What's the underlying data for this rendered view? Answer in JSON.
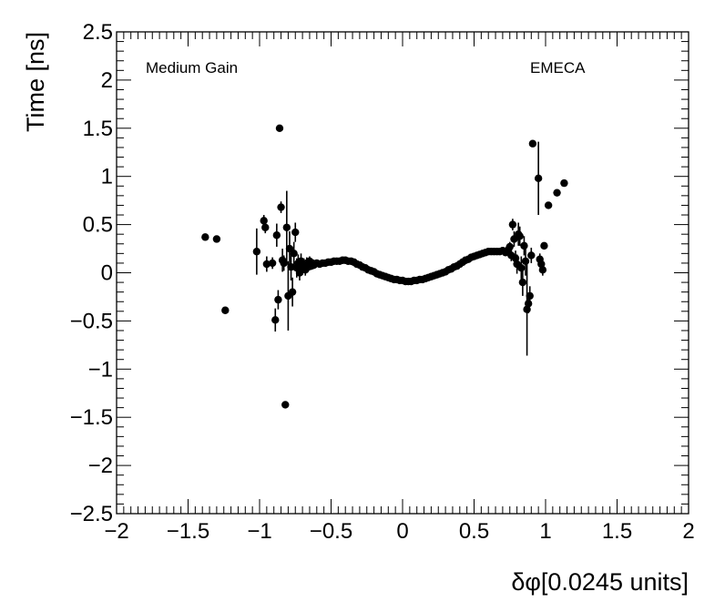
{
  "chart_data": {
    "type": "scatter",
    "title": "",
    "xlabel": "δφ[0.0245 units]",
    "ylabel": "Time [ns]",
    "xlim": [
      -2,
      2
    ],
    "ylim": [
      -2.5,
      2.5
    ],
    "x_ticks": [
      "−2",
      "−1.5",
      "−1",
      "−0.5",
      "0",
      "0.5",
      "1",
      "1.5",
      "2"
    ],
    "y_ticks": [
      "2.5",
      "2",
      "1.5",
      "1",
      "0.5",
      "0",
      "−0.5",
      "−1",
      "−1.5",
      "−2",
      "−2.5"
    ],
    "annotations": {
      "gain": "Medium Gain",
      "region": "EMECA"
    },
    "grid": false,
    "legend": "none",
    "marker_color": "#000000",
    "points": [
      {
        "x": -1.38,
        "y": 0.37,
        "err": 0.0
      },
      {
        "x": -1.3,
        "y": 0.35,
        "err": 0.0
      },
      {
        "x": -1.24,
        "y": -0.39,
        "err": 0.0
      },
      {
        "x": -1.02,
        "y": 0.22,
        "err": 0.24
      },
      {
        "x": -0.97,
        "y": 0.54,
        "err": 0.06
      },
      {
        "x": -0.96,
        "y": 0.47,
        "err": 0.06
      },
      {
        "x": -0.95,
        "y": 0.09,
        "err": 0.08
      },
      {
        "x": -0.91,
        "y": 0.1,
        "err": 0.06
      },
      {
        "x": -0.89,
        "y": -0.49,
        "err": 0.12
      },
      {
        "x": -0.88,
        "y": 0.39,
        "err": 0.12
      },
      {
        "x": -0.87,
        "y": -0.28,
        "err": 0.1
      },
      {
        "x": -0.86,
        "y": 1.5,
        "err": 0.0
      },
      {
        "x": -0.85,
        "y": 0.68,
        "err": 0.06
      },
      {
        "x": -0.84,
        "y": 0.13,
        "err": 0.12
      },
      {
        "x": -0.83,
        "y": 0.1,
        "err": 0.08
      },
      {
        "x": -0.82,
        "y": -1.37,
        "err": 0.0
      },
      {
        "x": -0.81,
        "y": 0.47,
        "err": 0.38
      },
      {
        "x": -0.8,
        "y": -0.24,
        "err": 0.36
      },
      {
        "x": -0.79,
        "y": 0.25,
        "err": 0.18
      },
      {
        "x": -0.78,
        "y": 0.06,
        "err": 0.14
      },
      {
        "x": -0.77,
        "y": -0.2,
        "err": 0.15
      },
      {
        "x": -0.76,
        "y": 0.2,
        "err": 0.12
      },
      {
        "x": -0.75,
        "y": 0.42,
        "err": 0.1
      },
      {
        "x": -0.74,
        "y": 0.05,
        "err": 0.1
      },
      {
        "x": -0.73,
        "y": 0.1,
        "err": 0.09
      },
      {
        "x": -0.72,
        "y": 0.0,
        "err": 0.08
      },
      {
        "x": -0.71,
        "y": 0.12,
        "err": 0.08
      },
      {
        "x": -0.7,
        "y": 0.05,
        "err": 0.07
      },
      {
        "x": -0.69,
        "y": 0.08,
        "err": 0.07
      },
      {
        "x": -0.68,
        "y": 0.03,
        "err": 0.06
      },
      {
        "x": -0.67,
        "y": 0.1,
        "err": 0.06
      },
      {
        "x": -0.66,
        "y": 0.06,
        "err": 0.05
      },
      {
        "x": -0.65,
        "y": 0.12,
        "err": 0.05
      },
      {
        "x": -0.64,
        "y": 0.07,
        "err": 0.04
      },
      {
        "x": -0.63,
        "y": 0.1,
        "err": 0.04
      },
      {
        "x": -0.62,
        "y": 0.08,
        "err": 0.04
      },
      {
        "x": -0.6,
        "y": 0.1,
        "err": 0.03
      },
      {
        "x": -0.58,
        "y": 0.09,
        "err": 0.03
      },
      {
        "x": -0.56,
        "y": 0.1,
        "err": 0.02
      },
      {
        "x": -0.54,
        "y": 0.1,
        "err": 0.02
      },
      {
        "x": -0.52,
        "y": 0.11,
        "err": 0.02
      },
      {
        "x": -0.5,
        "y": 0.11,
        "err": 0.02
      },
      {
        "x": -0.48,
        "y": 0.12,
        "err": 0.0
      },
      {
        "x": -0.46,
        "y": 0.12,
        "err": 0.0
      },
      {
        "x": -0.44,
        "y": 0.12,
        "err": 0.0
      },
      {
        "x": -0.42,
        "y": 0.13,
        "err": 0.0
      },
      {
        "x": -0.4,
        "y": 0.13,
        "err": 0.0
      },
      {
        "x": -0.38,
        "y": 0.12,
        "err": 0.0
      },
      {
        "x": -0.36,
        "y": 0.12,
        "err": 0.0
      },
      {
        "x": -0.34,
        "y": 0.11,
        "err": 0.0
      },
      {
        "x": -0.32,
        "y": 0.09,
        "err": 0.0
      },
      {
        "x": -0.3,
        "y": 0.08,
        "err": 0.0
      },
      {
        "x": -0.28,
        "y": 0.06,
        "err": 0.0
      },
      {
        "x": -0.26,
        "y": 0.05,
        "err": 0.0
      },
      {
        "x": -0.24,
        "y": 0.03,
        "err": 0.0
      },
      {
        "x": -0.22,
        "y": 0.02,
        "err": 0.0
      },
      {
        "x": -0.2,
        "y": 0.01,
        "err": 0.0
      },
      {
        "x": -0.18,
        "y": -0.01,
        "err": 0.0
      },
      {
        "x": -0.16,
        "y": -0.02,
        "err": 0.0
      },
      {
        "x": -0.14,
        "y": -0.03,
        "err": 0.0
      },
      {
        "x": -0.12,
        "y": -0.04,
        "err": 0.0
      },
      {
        "x": -0.1,
        "y": -0.05,
        "err": 0.0
      },
      {
        "x": -0.08,
        "y": -0.06,
        "err": 0.0
      },
      {
        "x": -0.06,
        "y": -0.07,
        "err": 0.0
      },
      {
        "x": -0.04,
        "y": -0.07,
        "err": 0.0
      },
      {
        "x": -0.02,
        "y": -0.08,
        "err": 0.0
      },
      {
        "x": 0.0,
        "y": -0.08,
        "err": 0.0
      },
      {
        "x": 0.02,
        "y": -0.09,
        "err": 0.0
      },
      {
        "x": 0.04,
        "y": -0.09,
        "err": 0.0
      },
      {
        "x": 0.06,
        "y": -0.09,
        "err": 0.0
      },
      {
        "x": 0.08,
        "y": -0.08,
        "err": 0.0
      },
      {
        "x": 0.1,
        "y": -0.08,
        "err": 0.0
      },
      {
        "x": 0.12,
        "y": -0.07,
        "err": 0.0
      },
      {
        "x": 0.14,
        "y": -0.07,
        "err": 0.0
      },
      {
        "x": 0.16,
        "y": -0.06,
        "err": 0.0
      },
      {
        "x": 0.18,
        "y": -0.05,
        "err": 0.0
      },
      {
        "x": 0.2,
        "y": -0.04,
        "err": 0.0
      },
      {
        "x": 0.22,
        "y": -0.03,
        "err": 0.0
      },
      {
        "x": 0.24,
        "y": -0.02,
        "err": 0.0
      },
      {
        "x": 0.26,
        "y": -0.01,
        "err": 0.0
      },
      {
        "x": 0.28,
        "y": 0.0,
        "err": 0.0
      },
      {
        "x": 0.3,
        "y": 0.01,
        "err": 0.0
      },
      {
        "x": 0.32,
        "y": 0.03,
        "err": 0.0
      },
      {
        "x": 0.34,
        "y": 0.04,
        "err": 0.0
      },
      {
        "x": 0.36,
        "y": 0.06,
        "err": 0.0
      },
      {
        "x": 0.38,
        "y": 0.07,
        "err": 0.0
      },
      {
        "x": 0.4,
        "y": 0.09,
        "err": 0.0
      },
      {
        "x": 0.42,
        "y": 0.11,
        "err": 0.0
      },
      {
        "x": 0.44,
        "y": 0.13,
        "err": 0.0
      },
      {
        "x": 0.46,
        "y": 0.14,
        "err": 0.0
      },
      {
        "x": 0.48,
        "y": 0.16,
        "err": 0.0
      },
      {
        "x": 0.5,
        "y": 0.17,
        "err": 0.0
      },
      {
        "x": 0.52,
        "y": 0.18,
        "err": 0.0
      },
      {
        "x": 0.54,
        "y": 0.19,
        "err": 0.0
      },
      {
        "x": 0.56,
        "y": 0.2,
        "err": 0.0
      },
      {
        "x": 0.58,
        "y": 0.21,
        "err": 0.0
      },
      {
        "x": 0.6,
        "y": 0.22,
        "err": 0.0
      },
      {
        "x": 0.62,
        "y": 0.22,
        "err": 0.0
      },
      {
        "x": 0.64,
        "y": 0.22,
        "err": 0.0
      },
      {
        "x": 0.66,
        "y": 0.22,
        "err": 0.02
      },
      {
        "x": 0.68,
        "y": 0.22,
        "err": 0.02
      },
      {
        "x": 0.7,
        "y": 0.23,
        "err": 0.03
      },
      {
        "x": 0.72,
        "y": 0.21,
        "err": 0.03
      },
      {
        "x": 0.74,
        "y": 0.24,
        "err": 0.04
      },
      {
        "x": 0.75,
        "y": 0.27,
        "err": 0.05
      },
      {
        "x": 0.76,
        "y": 0.18,
        "err": 0.06
      },
      {
        "x": 0.77,
        "y": 0.5,
        "err": 0.06
      },
      {
        "x": 0.78,
        "y": 0.35,
        "err": 0.08
      },
      {
        "x": 0.79,
        "y": 0.15,
        "err": 0.08
      },
      {
        "x": 0.8,
        "y": 0.09,
        "err": 0.1
      },
      {
        "x": 0.81,
        "y": 0.4,
        "err": 0.12
      },
      {
        "x": 0.82,
        "y": 0.38,
        "err": 0.1
      },
      {
        "x": 0.83,
        "y": 0.05,
        "err": 0.12
      },
      {
        "x": 0.84,
        "y": -0.1,
        "err": 0.14
      },
      {
        "x": 0.85,
        "y": 0.28,
        "err": 0.1
      },
      {
        "x": 0.86,
        "y": 0.12,
        "err": 0.15
      },
      {
        "x": 0.87,
        "y": -0.38,
        "err": 0.48
      },
      {
        "x": 0.88,
        "y": -0.32,
        "err": 0.1
      },
      {
        "x": 0.89,
        "y": -0.24,
        "err": 0.1
      },
      {
        "x": 0.9,
        "y": 0.18,
        "err": 0.08
      },
      {
        "x": 0.91,
        "y": 1.34,
        "err": 0.0
      },
      {
        "x": 0.95,
        "y": 0.98,
        "err": 0.38
      },
      {
        "x": 0.96,
        "y": 0.14,
        "err": 0.06
      },
      {
        "x": 0.97,
        "y": 0.09,
        "err": 0.06
      },
      {
        "x": 0.98,
        "y": 0.03,
        "err": 0.06
      },
      {
        "x": 0.99,
        "y": 0.28,
        "err": 0.0
      },
      {
        "x": 1.02,
        "y": 0.7,
        "err": 0.0
      },
      {
        "x": 1.08,
        "y": 0.83,
        "err": 0.0
      },
      {
        "x": 1.13,
        "y": 0.93,
        "err": 0.0
      }
    ]
  }
}
